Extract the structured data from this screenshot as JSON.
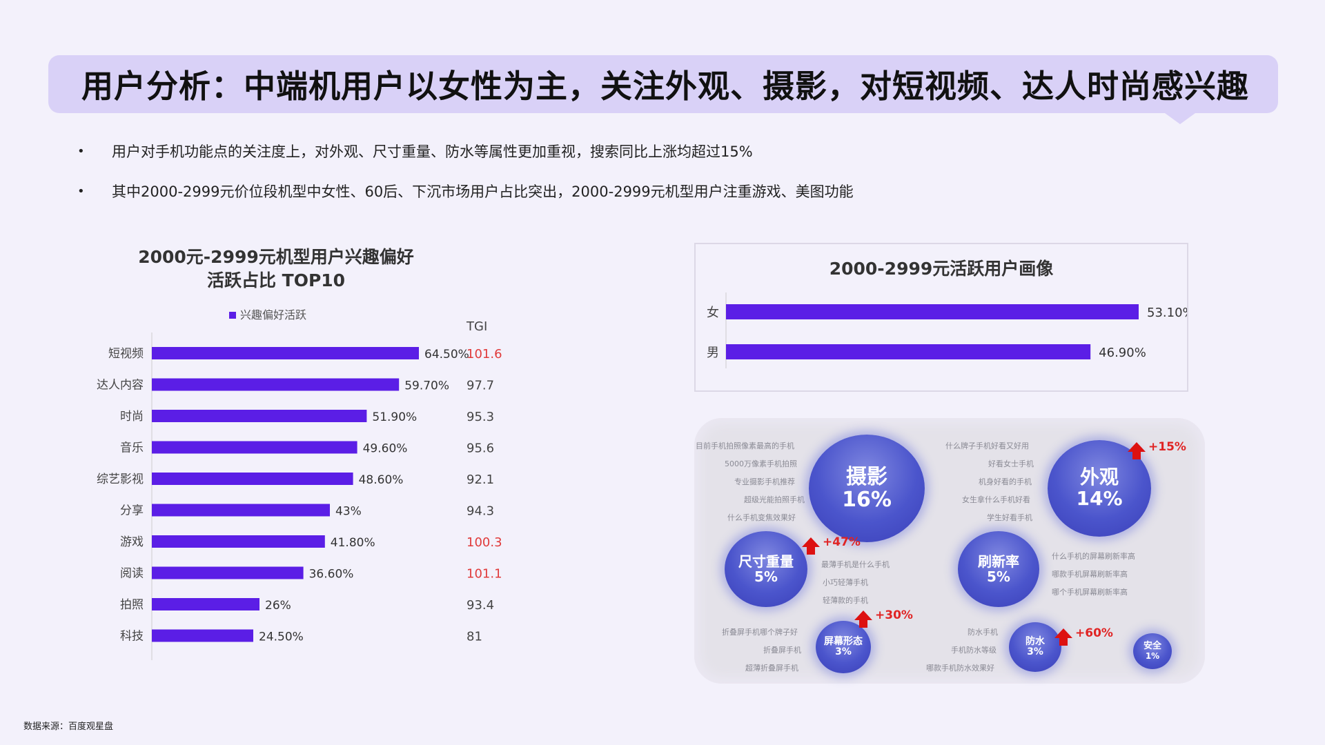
{
  "title": "用户分析：中端机用户以女性为主，关注外观、摄影，对短视频、达人时尚感兴趣",
  "bullets": [
    "用户对手机功能点的关注度上，对外观、尺寸重量、防水等属性更加重视，搜索同比上涨均超过15%",
    "其中2000-2999元价位段机型中女性、60后、下沉市场用户占比突出，2000-2999元机型用户注重游戏、美图功能"
  ],
  "source": "数据来源：百度观星盘",
  "colors": {
    "bar": "#5b1ee6",
    "tgi_high": "#e03a3a",
    "tgi_normal": "#444444",
    "accent_bg": "#d9d1f7"
  },
  "chart_data": [
    {
      "type": "bar",
      "orientation": "horizontal",
      "title_line1": "2000元-2999元机型用户兴趣偏好",
      "title_line2": "活跃占比 TOP10",
      "legend": "兴趣偏好活跃",
      "tgi_header": "TGI",
      "categories": [
        "短视频",
        "达人内容",
        "时尚",
        "音乐",
        "综艺影视",
        "分享",
        "游戏",
        "阅读",
        "拍照",
        "科技"
      ],
      "values": [
        64.5,
        59.7,
        51.9,
        49.6,
        48.6,
        43,
        41.8,
        36.6,
        26,
        24.5
      ],
      "value_labels": [
        "64.50%",
        "59.70%",
        "51.90%",
        "49.60%",
        "48.60%",
        "43%",
        "41.80%",
        "36.60%",
        "26%",
        "24.50%"
      ],
      "tgi": [
        "101.6",
        "97.7",
        "95.3",
        "95.6",
        "92.1",
        "94.3",
        "100.3",
        "101.1",
        "93.4",
        "81"
      ],
      "tgi_highlight": [
        true,
        false,
        false,
        false,
        false,
        false,
        true,
        true,
        false,
        false
      ],
      "xlim": [
        0,
        100
      ]
    },
    {
      "type": "bar",
      "orientation": "horizontal",
      "title": "2000-2999元活跃用户画像",
      "categories": [
        "女",
        "男"
      ],
      "values": [
        53.1,
        46.9
      ],
      "value_labels": [
        "53.10%",
        "46.90%"
      ],
      "xlim": [
        0,
        53.1
      ]
    }
  ],
  "bubbles": [
    {
      "name": "摄影",
      "pct": "16%"
    },
    {
      "name": "外观",
      "pct": "14%",
      "growth": "+15%"
    },
    {
      "name": "尺寸重量",
      "pct": "5%",
      "growth": "+47%"
    },
    {
      "name": "刷新率",
      "pct": "5%"
    },
    {
      "name": "屏幕形态",
      "pct": "3%",
      "growth": "+30%"
    },
    {
      "name": "防水",
      "pct": "3%",
      "growth": "+60%"
    },
    {
      "name": "安全",
      "pct": "1%"
    }
  ],
  "keywords": {
    "photo": [
      "目前手机拍照像素最高的手机",
      "5000万像素手机拍照",
      "专业摄影手机推荐",
      "超级光能拍照手机",
      "什么手机变焦效果好"
    ],
    "look": [
      "什么牌子手机好看又好用",
      "好看女士手机",
      "机身好看的手机",
      "女生拿什么手机好看",
      "学生好看手机"
    ],
    "size": [
      "最薄手机是什么手机",
      "小巧轻薄手机",
      "轻薄款的手机"
    ],
    "refresh": [
      "什么手机的屏幕刷新率高",
      "哪款手机屏幕刷新率高",
      "哪个手机屏幕刷新率高"
    ],
    "screen": [
      "折叠屏手机哪个牌子好",
      "折叠屏手机",
      "超薄折叠屏手机"
    ],
    "water": [
      "防水手机",
      "手机防水等级",
      "哪款手机防水效果好"
    ]
  }
}
